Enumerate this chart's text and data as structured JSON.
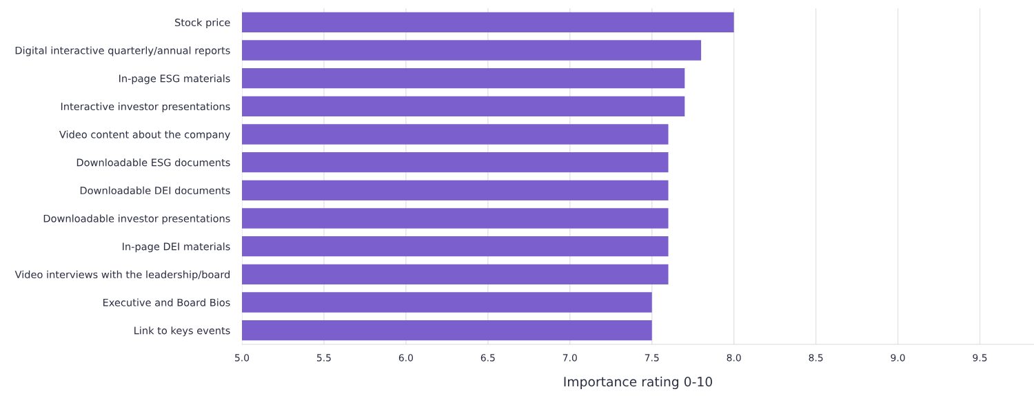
{
  "chart_data": {
    "type": "bar",
    "orientation": "horizontal",
    "xlabel": "Importance rating 0-10",
    "categories": [
      "Stock price",
      "Digital interactive quarterly/annual reports",
      "In-page ESG materials",
      "Interactive investor presentations",
      "Video content about the company",
      "Downloadable ESG documents",
      "Downloadable DEI documents",
      "Downloadable investor presentations",
      "In-page DEI materials",
      "Video interviews with the leadership/board",
      "Executive and Board Bios",
      "Link to keys events"
    ],
    "values": [
      8.0,
      7.8,
      7.7,
      7.7,
      7.6,
      7.6,
      7.6,
      7.6,
      7.6,
      7.6,
      7.5,
      7.5
    ],
    "color": "#7b5fcc",
    "xlim": [
      5.0,
      9.83
    ],
    "xticks": [
      {
        "value": 5.0,
        "label": "5.0"
      },
      {
        "value": 5.5,
        "label": "5.5"
      },
      {
        "value": 6.0,
        "label": "6.0"
      },
      {
        "value": 6.5,
        "label": "6.5"
      },
      {
        "value": 7.0,
        "label": "7.0"
      },
      {
        "value": 7.5,
        "label": "7.5"
      },
      {
        "value": 8.0,
        "label": "8.0"
      },
      {
        "value": 8.5,
        "label": "8.5"
      },
      {
        "value": 9.0,
        "label": "9.0"
      },
      {
        "value": 9.5,
        "label": "9.5"
      }
    ],
    "grid": "x"
  }
}
